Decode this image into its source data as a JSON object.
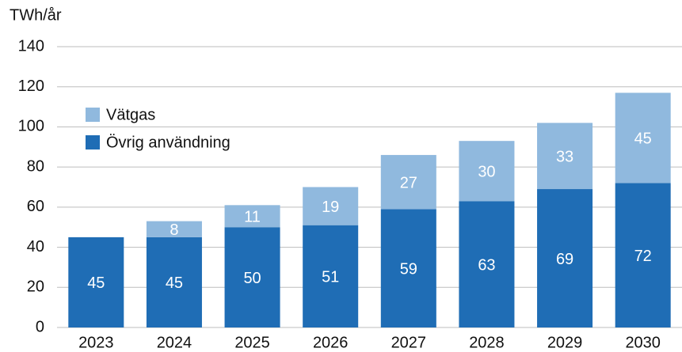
{
  "chart_data": {
    "type": "stacked_bar",
    "y_label": "TWh/år",
    "categories": [
      "2023",
      "2024",
      "2025",
      "2026",
      "2027",
      "2028",
      "2029",
      "2030"
    ],
    "series": [
      {
        "name": "Övrig användning",
        "color": "#1f6db5",
        "values": [
          45,
          45,
          50,
          51,
          59,
          63,
          69,
          72
        ]
      },
      {
        "name": "Vätgas",
        "color": "#90b9de",
        "values": [
          null,
          8,
          11,
          19,
          27,
          30,
          33,
          45
        ]
      }
    ],
    "ylim": [
      0,
      140
    ],
    "yticks": [
      0,
      20,
      40,
      60,
      80,
      100,
      120,
      140
    ],
    "grid": true,
    "legend": "upper left",
    "value_label_color": "#ffffff"
  }
}
